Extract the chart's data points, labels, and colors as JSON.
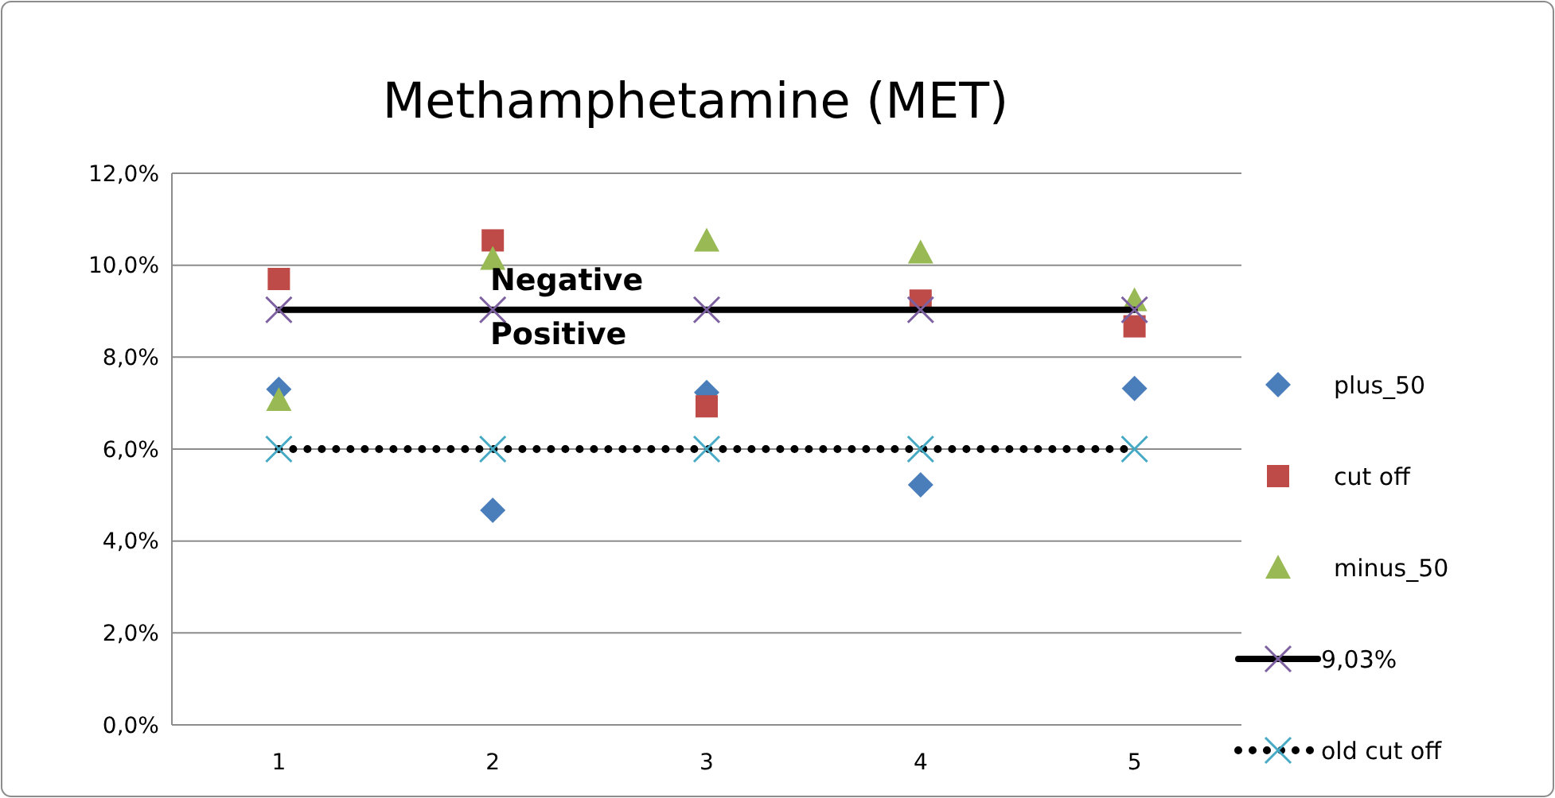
{
  "chart_data": {
    "type": "scatter",
    "title": "Methamphetamine (MET)",
    "categories": [
      "1",
      "2",
      "3",
      "4",
      "5"
    ],
    "series": [
      {
        "name": "plus_50",
        "marker": "diamond",
        "color": "#4a7ebb",
        "values": [
          7.3,
          4.67,
          7.23,
          5.22,
          7.32
        ]
      },
      {
        "name": "cut off",
        "marker": "square",
        "color": "#be4b48",
        "values": [
          9.7,
          10.54,
          6.93,
          9.23,
          8.67
        ]
      },
      {
        "name": "minus_50",
        "marker": "triangle",
        "color": "#98b954",
        "values": [
          7.07,
          10.14,
          10.54,
          10.28,
          9.24
        ]
      },
      {
        "name": "9,03%",
        "type": "line",
        "marker": "cross",
        "line_style": "solid",
        "color": "#000000",
        "colors": [
          "#7d60a0",
          "#7d60a0",
          "#7d60a0",
          "#7d60a0",
          "#7d60a0"
        ],
        "values": [
          9.03,
          9.03,
          9.03,
          9.03,
          9.03
        ]
      },
      {
        "name": "old cut off",
        "type": "line",
        "marker": "cross",
        "line_style": "dotted",
        "color": "#000000",
        "colors": [
          "#46aac5",
          "#46aac5",
          "#46aac5",
          "#46aac5",
          "#46aac5"
        ],
        "values": [
          6,
          6,
          6,
          6,
          6
        ]
      }
    ],
    "ylim": [
      0,
      12
    ],
    "yticks": [
      {
        "value": 0,
        "label": "0,0%"
      },
      {
        "value": 2,
        "label": "2,0%"
      },
      {
        "value": 4,
        "label": "4,0%"
      },
      {
        "value": 6,
        "label": "6,0%"
      },
      {
        "value": 8,
        "label": "8,0%"
      },
      {
        "value": 10,
        "label": "10,0%"
      },
      {
        "value": 12,
        "label": "12,0%"
      }
    ],
    "grid": "y",
    "legend": "right",
    "annotations": [
      "Negative",
      "Positive"
    ]
  }
}
